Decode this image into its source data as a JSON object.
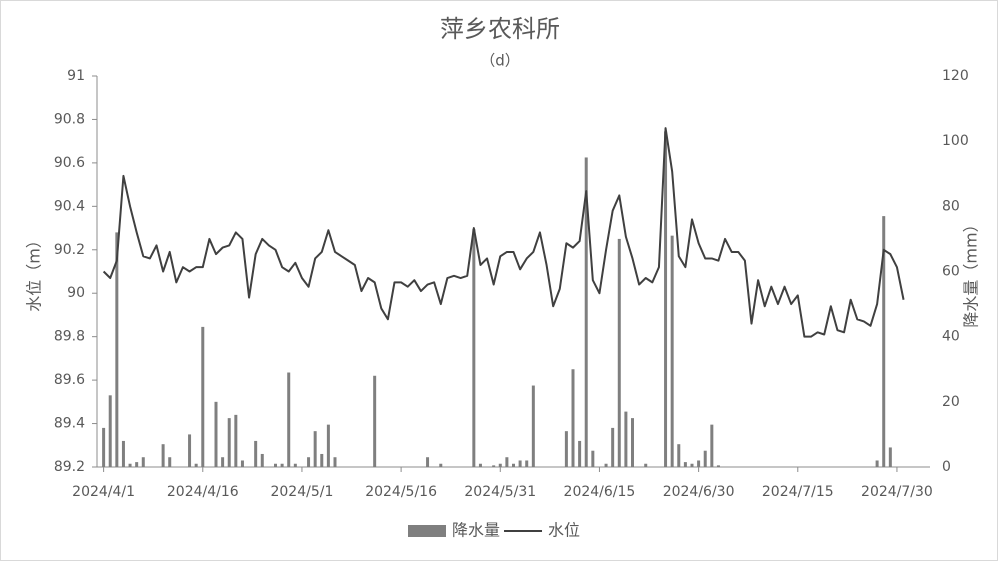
{
  "chart_data": {
    "type": "combo",
    "title": "萍乡农科所",
    "subtitle": "（d）",
    "y_label": "水位（m）",
    "y2_label": "降水量（mm）",
    "x": [
      "2024/4/1",
      "2024/4/2",
      "2024/4/3",
      "2024/4/4",
      "2024/4/5",
      "2024/4/6",
      "2024/4/7",
      "2024/4/8",
      "2024/4/9",
      "2024/4/10",
      "2024/4/11",
      "2024/4/12",
      "2024/4/13",
      "2024/4/14",
      "2024/4/15",
      "2024/4/16",
      "2024/4/17",
      "2024/4/18",
      "2024/4/19",
      "2024/4/20",
      "2024/4/21",
      "2024/4/22",
      "2024/4/23",
      "2024/4/24",
      "2024/4/25",
      "2024/4/26",
      "2024/4/27",
      "2024/4/28",
      "2024/4/29",
      "2024/4/30",
      "2024/5/1",
      "2024/5/2",
      "2024/5/3",
      "2024/5/4",
      "2024/5/5",
      "2024/5/6",
      "2024/5/7",
      "2024/5/8",
      "2024/5/9",
      "2024/5/10",
      "2024/5/11",
      "2024/5/12",
      "2024/5/13",
      "2024/5/14",
      "2024/5/15",
      "2024/5/16",
      "2024/5/17",
      "2024/5/18",
      "2024/5/19",
      "2024/5/20",
      "2024/5/21",
      "2024/5/22",
      "2024/5/23",
      "2024/5/24",
      "2024/5/25",
      "2024/5/26",
      "2024/5/27",
      "2024/5/28",
      "2024/5/29",
      "2024/5/30",
      "2024/5/31",
      "2024/6/1",
      "2024/6/2",
      "2024/6/3",
      "2024/6/4",
      "2024/6/5",
      "2024/6/6",
      "2024/6/7",
      "2024/6/8",
      "2024/6/9",
      "2024/6/10",
      "2024/6/11",
      "2024/6/12",
      "2024/6/13",
      "2024/6/14",
      "2024/6/15",
      "2024/6/16",
      "2024/6/17",
      "2024/6/18",
      "2024/6/19",
      "2024/6/20",
      "2024/6/21",
      "2024/6/22",
      "2024/6/23",
      "2024/6/24",
      "2024/6/25",
      "2024/6/26",
      "2024/6/27",
      "2024/6/28",
      "2024/6/29",
      "2024/6/30",
      "2024/7/1",
      "2024/7/2",
      "2024/7/3",
      "2024/7/4",
      "2024/7/5",
      "2024/7/6",
      "2024/7/7",
      "2024/7/8",
      "2024/7/9",
      "2024/7/10",
      "2024/7/11",
      "2024/7/12",
      "2024/7/13",
      "2024/7/14",
      "2024/7/15",
      "2024/7/16",
      "2024/7/17",
      "2024/7/18",
      "2024/7/19",
      "2024/7/20",
      "2024/7/21",
      "2024/7/22",
      "2024/7/23",
      "2024/7/24",
      "2024/7/25",
      "2024/7/26",
      "2024/7/27",
      "2024/7/28",
      "2024/7/29",
      "2024/7/30",
      "2024/7/31"
    ],
    "series": [
      {
        "name": "降水量",
        "type": "bar",
        "axis": "y2",
        "color": "#7f7f7f",
        "values": [
          12,
          22,
          72,
          8,
          1,
          1.5,
          3,
          0,
          0,
          7,
          3,
          0,
          0,
          10,
          1,
          43,
          0,
          20,
          3,
          15,
          16,
          2,
          0,
          8,
          4,
          0,
          1,
          1,
          29,
          1,
          0,
          3,
          11,
          4,
          13,
          3,
          0,
          0,
          0,
          0,
          0,
          28,
          0,
          0,
          0,
          0,
          0,
          0,
          0,
          3,
          0,
          1,
          0,
          0,
          0,
          0,
          73,
          1,
          0,
          0.5,
          1,
          3,
          1,
          2,
          2,
          25,
          0,
          0,
          0,
          0,
          11,
          30,
          8,
          95,
          5,
          0,
          1,
          12,
          70,
          17,
          15,
          0,
          1,
          0,
          0,
          103,
          71,
          7,
          1.5,
          1,
          2,
          5,
          13,
          0.5,
          0,
          0,
          0,
          0,
          0,
          0,
          0,
          0,
          0,
          0,
          0,
          0,
          0,
          0,
          0,
          0,
          0,
          0,
          0,
          0,
          0,
          0,
          0,
          2,
          77,
          6,
          0,
          0
        ]
      },
      {
        "name": "水位",
        "type": "line",
        "color": "#404040",
        "values": [
          90.1,
          90.07,
          90.15,
          90.54,
          90.4,
          90.28,
          90.17,
          90.16,
          90.22,
          90.1,
          90.19,
          90.05,
          90.12,
          90.1,
          90.12,
          90.12,
          90.25,
          90.18,
          90.21,
          90.22,
          90.28,
          90.25,
          89.98,
          90.18,
          90.25,
          90.22,
          90.2,
          90.12,
          90.1,
          90.14,
          90.07,
          90.03,
          90.16,
          90.19,
          90.29,
          90.19,
          90.17,
          90.15,
          90.13,
          90.01,
          90.07,
          90.05,
          89.93,
          89.88,
          90.05,
          90.05,
          90.03,
          90.06,
          90.01,
          90.04,
          90.05,
          89.95,
          90.07,
          90.08,
          90.07,
          90.08,
          90.3,
          90.13,
          90.16,
          90.04,
          90.17,
          90.19,
          90.19,
          90.11,
          90.16,
          90.19,
          90.28,
          90.13,
          89.94,
          90.02,
          90.23,
          90.21,
          90.24,
          90.47,
          90.06,
          90.0,
          90.2,
          90.38,
          90.45,
          90.26,
          90.16,
          90.04,
          90.07,
          90.05,
          90.12,
          90.76,
          90.56,
          90.17,
          90.12,
          90.34,
          90.23,
          90.16,
          90.16,
          90.15,
          90.25,
          90.19,
          90.19,
          90.15,
          89.86,
          90.06,
          89.94,
          90.03,
          89.95,
          90.03,
          89.95,
          89.99,
          89.8,
          89.8,
          89.82,
          89.81,
          89.94,
          89.83,
          89.82,
          89.97,
          89.88,
          89.87,
          89.85,
          89.95,
          90.2,
          90.18,
          90.12,
          89.97
        ]
      }
    ],
    "xlim": [
      "2024/3/31",
      "2024/8/4"
    ],
    "xticks": [
      "2024/4/1",
      "2024/4/16",
      "2024/5/1",
      "2024/5/16",
      "2024/5/31",
      "2024/6/15",
      "2024/6/30",
      "2024/7/15",
      "2024/7/30"
    ],
    "ylim": [
      89.2,
      91
    ],
    "yticks": [
      89.2,
      89.4,
      89.6,
      89.8,
      90,
      90.2,
      90.4,
      90.6,
      90.8,
      91
    ],
    "y2lim": [
      0,
      120
    ],
    "y2ticks": [
      0,
      20,
      40,
      60,
      80,
      100,
      120
    ],
    "grid": false,
    "legend": "bottom"
  }
}
